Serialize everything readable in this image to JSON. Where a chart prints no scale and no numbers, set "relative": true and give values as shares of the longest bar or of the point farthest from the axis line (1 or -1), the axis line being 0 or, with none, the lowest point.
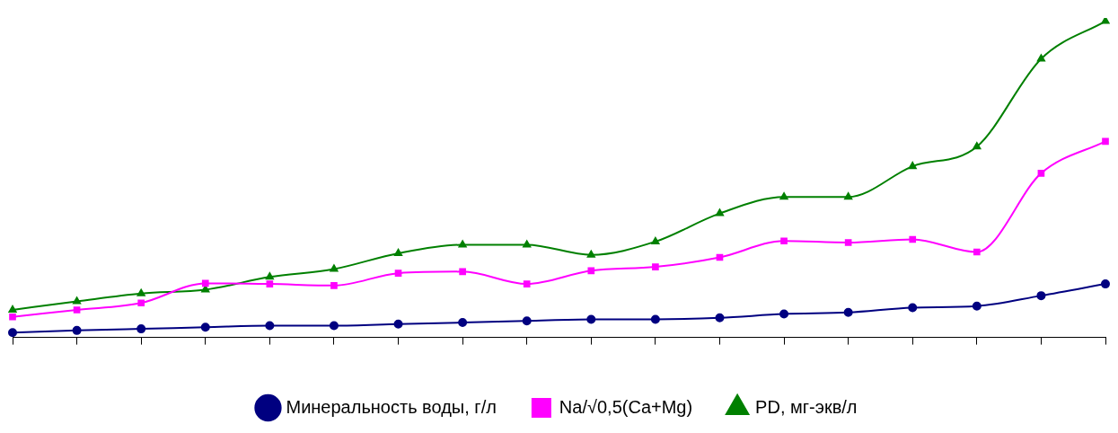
{
  "chart_data": {
    "type": "line",
    "relative": true,
    "categories": [
      null,
      null,
      null,
      null,
      null,
      null,
      null,
      null,
      null,
      null,
      null,
      null,
      null,
      null,
      null,
      null,
      null,
      null
    ],
    "legend": "bottom",
    "grid": false,
    "series": [
      {
        "name": "Минеральность воды, г/л",
        "color": "#000080",
        "marker": "circle",
        "values": [
          0.015,
          0.022,
          0.027,
          0.032,
          0.037,
          0.037,
          0.042,
          0.047,
          0.052,
          0.057,
          0.057,
          0.062,
          0.074,
          0.079,
          0.094,
          0.099,
          0.132,
          0.169
        ]
      },
      {
        "name": "Na/√0,5(Ca+Mg)",
        "color": "#ff00ff",
        "marker": "square",
        "values": [
          0.065,
          0.087,
          0.109,
          0.171,
          0.169,
          0.164,
          0.203,
          0.208,
          0.169,
          0.211,
          0.223,
          0.253,
          0.305,
          0.3,
          0.31,
          0.27,
          0.519,
          0.62
        ]
      },
      {
        "name": "PD, мг-экв/л",
        "color": "#008000",
        "marker": "triangle",
        "values": [
          0.087,
          0.114,
          0.139,
          0.151,
          0.191,
          0.216,
          0.266,
          0.293,
          0.293,
          0.261,
          0.303,
          0.392,
          0.444,
          0.444,
          0.541,
          0.603,
          0.881,
          1
        ]
      }
    ]
  }
}
